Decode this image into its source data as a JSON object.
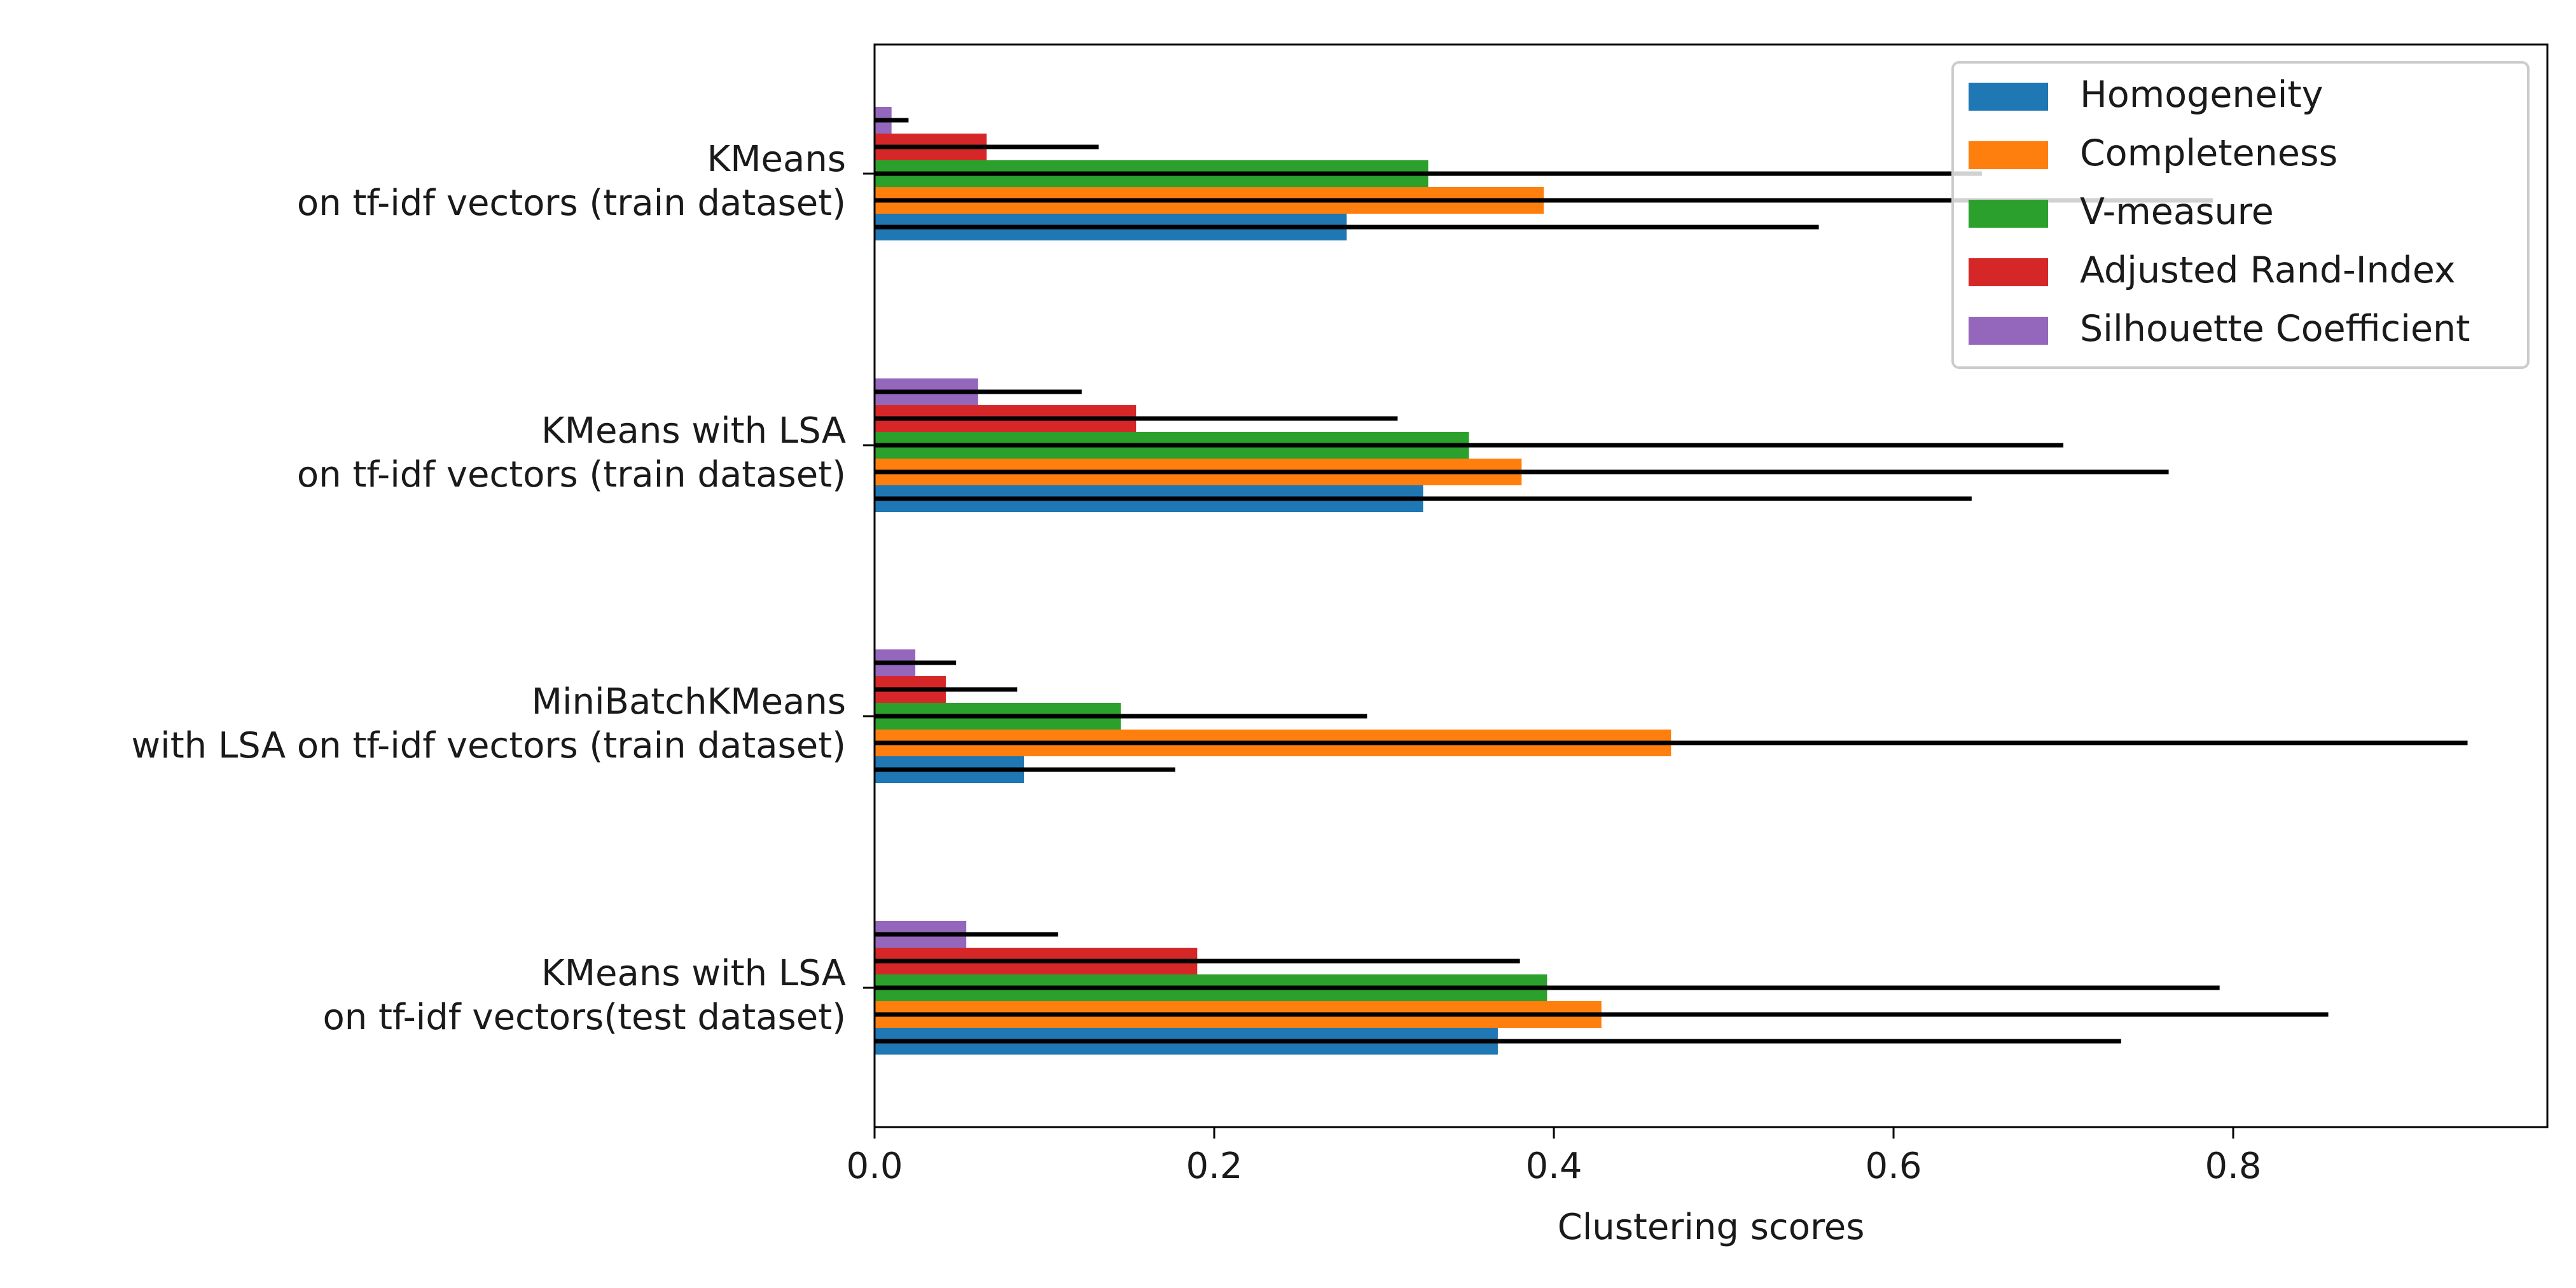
{
  "chart_data": {
    "type": "bar",
    "orientation": "horizontal",
    "title": "",
    "xlabel": "Clustering scores",
    "ylabel": "",
    "xlim": [
      0,
      0.985
    ],
    "xticks": [
      "0.0",
      "0.2",
      "0.4",
      "0.6",
      "0.8"
    ],
    "xtick_values": [
      0,
      0.2,
      0.4,
      0.6,
      0.8
    ],
    "grid": false,
    "legend_position": "top-right",
    "categories": [
      [
        "KMeans",
        "on tf-idf vectors (train dataset)"
      ],
      [
        "KMeans with LSA",
        "on tf-idf vectors (train dataset)"
      ],
      [
        "MiniBatchKMeans",
        "with LSA on tf-idf vectors (train dataset)"
      ],
      [
        "KMeans with LSA ",
        "on tf-idf vectors(test dataset)"
      ]
    ],
    "series": [
      {
        "name": "Homogeneity",
        "color": "#1f77b4",
        "values": [
          0.278,
          0.323,
          0.088,
          0.367
        ],
        "errors": [
          0.278,
          0.323,
          0.089,
          0.367
        ]
      },
      {
        "name": "Completeness",
        "color": "#ff7f0e",
        "values": [
          0.394,
          0.381,
          0.469,
          0.428
        ],
        "errors": [
          0.394,
          0.381,
          0.469,
          0.428
        ]
      },
      {
        "name": "V-measure",
        "color": "#2ca02c",
        "values": [
          0.326,
          0.35,
          0.145,
          0.396
        ],
        "errors": [
          0.326,
          0.35,
          0.145,
          0.396
        ]
      },
      {
        "name": "Adjusted Rand-Index",
        "color": "#d62728",
        "values": [
          0.066,
          0.154,
          0.042,
          0.19
        ],
        "errors": [
          0.066,
          0.154,
          0.042,
          0.19
        ]
      },
      {
        "name": "Silhouette Coefficient",
        "color": "#9467bd",
        "values": [
          0.01,
          0.061,
          0.024,
          0.054
        ],
        "errors": [
          0.01,
          0.061,
          0.024,
          0.054
        ]
      }
    ]
  }
}
